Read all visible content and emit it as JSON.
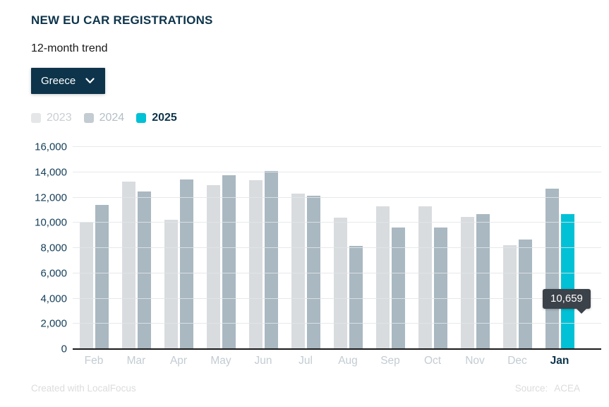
{
  "header": {
    "title": "NEW EU CAR REGISTRATIONS",
    "subtitle": "12-month trend",
    "country_dropdown": {
      "selected": "Greece"
    }
  },
  "chart_data": {
    "type": "bar",
    "title": "NEW EU CAR REGISTRATIONS",
    "subtitle": "12-month trend",
    "categories": [
      "Feb",
      "Mar",
      "Apr",
      "May",
      "Jun",
      "Jul",
      "Aug",
      "Sep",
      "Oct",
      "Nov",
      "Dec",
      "Jan"
    ],
    "series": [
      {
        "name": "2023",
        "color": "#d9dcdf",
        "legend_swatch": "#e4e6e8",
        "legend_text_color": "#c9ced3",
        "emphasis": false,
        "values": [
          10000,
          13250,
          10250,
          13000,
          13350,
          12300,
          10400,
          11300,
          11300,
          10450,
          8200,
          null
        ]
      },
      {
        "name": "2024",
        "color": "#a9b8c1",
        "legend_swatch": "#c3ccd2",
        "legend_text_color": "#b4bec5",
        "emphasis": false,
        "values": [
          11400,
          12450,
          13450,
          13750,
          14100,
          12150,
          8150,
          9650,
          9650,
          10700,
          8700,
          12700
        ]
      },
      {
        "name": "2025",
        "color": "#00c1d6",
        "legend_swatch": "#00c1d6",
        "legend_text_color": "#0d344b",
        "emphasis": true,
        "values": [
          null,
          null,
          null,
          null,
          null,
          null,
          null,
          null,
          null,
          null,
          null,
          10659
        ]
      }
    ],
    "ylim": [
      0,
      16000
    ],
    "ytick_step": 2000,
    "grid": true,
    "legend_position": "top",
    "highlighted_category": "Jan",
    "annotation": {
      "label": "10,659",
      "target_series": "2025",
      "target_category": "Jan"
    }
  },
  "footer": {
    "credit": "Created with LocalFocus",
    "source_label": "Source:",
    "source_name": "ACEA"
  },
  "colors": {
    "navy": "#0d344b",
    "accent_2025": "#00c1d6",
    "gridline": "#e8eaec",
    "tooltip_bg": "#3b4249"
  }
}
